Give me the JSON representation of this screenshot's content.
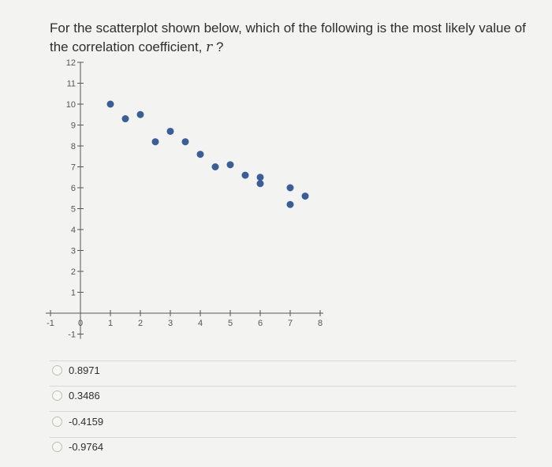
{
  "question": {
    "text": "For the scatterplot shown below, which of the following is the most likely value of the correlation coefficient,",
    "variable": "r",
    "suffix": " ?"
  },
  "options": [
    {
      "label": "0.8971"
    },
    {
      "label": "0.3486"
    },
    {
      "label": "-0.4159"
    },
    {
      "label": "-0.9764"
    }
  ],
  "colors": {
    "point": "#3a5f96",
    "axis": "#555555",
    "text": "#2e2e2e"
  },
  "chart_data": {
    "type": "scatter",
    "title": "",
    "xlabel": "",
    "ylabel": "",
    "xlim": [
      -1,
      8
    ],
    "ylim": [
      -1,
      12
    ],
    "grid": false,
    "x_ticks": [
      -1,
      0,
      1,
      2,
      3,
      4,
      5,
      6,
      7,
      8
    ],
    "y_ticks": [
      -1,
      0,
      1,
      2,
      3,
      4,
      5,
      6,
      7,
      8,
      9,
      10,
      11,
      12
    ],
    "x_tick_labels": [
      "-1",
      "0",
      "1",
      "2",
      "3",
      "4",
      "5",
      "6",
      "7",
      "8"
    ],
    "y_tick_labels": [
      "-1",
      "0",
      "1",
      "2",
      "3",
      "4",
      "5",
      "6",
      "7",
      "8",
      "9",
      "10",
      "11",
      "12"
    ],
    "points": [
      {
        "x": 1.0,
        "y": 10.0
      },
      {
        "x": 1.5,
        "y": 9.3
      },
      {
        "x": 2.0,
        "y": 9.5
      },
      {
        "x": 2.5,
        "y": 8.2
      },
      {
        "x": 3.0,
        "y": 8.7
      },
      {
        "x": 3.5,
        "y": 8.2
      },
      {
        "x": 4.0,
        "y": 7.6
      },
      {
        "x": 4.5,
        "y": 7.0
      },
      {
        "x": 5.0,
        "y": 7.1
      },
      {
        "x": 5.5,
        "y": 6.6
      },
      {
        "x": 6.0,
        "y": 6.5
      },
      {
        "x": 6.0,
        "y": 6.2
      },
      {
        "x": 7.0,
        "y": 6.0
      },
      {
        "x": 7.0,
        "y": 5.2
      },
      {
        "x": 7.5,
        "y": 5.6
      }
    ]
  }
}
